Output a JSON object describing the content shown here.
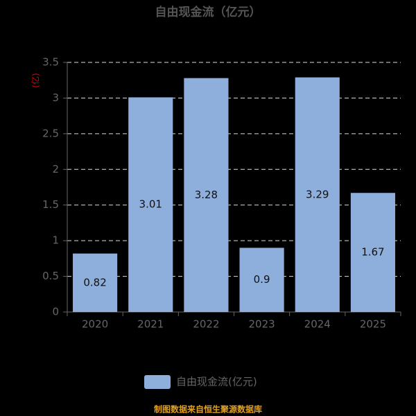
{
  "chart_data": {
    "type": "bar",
    "title": "自由现金流（亿元）",
    "y_label": "(亿)",
    "categories": [
      "2020",
      "2021",
      "2022",
      "2023",
      "2024",
      "2025"
    ],
    "series": [
      {
        "name": "自由现金流(亿元)",
        "color": "#8eaedb",
        "values": [
          0.82,
          3.01,
          3.28,
          0.9,
          3.29,
          1.67
        ]
      }
    ],
    "ylim": [
      0,
      3.5
    ],
    "yticks": [
      0,
      0.5,
      1,
      1.5,
      2,
      2.5,
      3,
      3.5
    ],
    "grid": true,
    "legend": "bottom",
    "source": "制图数据来自恒生聚源数据库"
  }
}
